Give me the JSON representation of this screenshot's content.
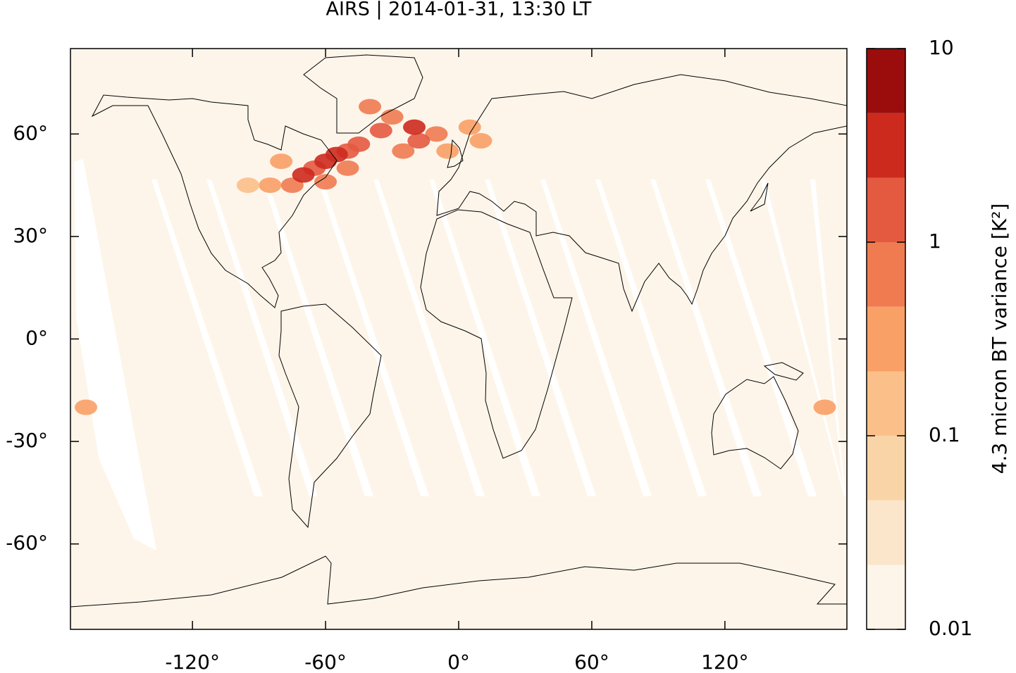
{
  "chart_data": {
    "type": "contour-map",
    "title": "AIRS | 2014-01-31, 13:30 LT",
    "colorbar_label": "4.3 micron BT variance [K²]",
    "xlim": [
      -175,
      175
    ],
    "ylim": [
      -85,
      85
    ],
    "xticks": [
      {
        "value": -120,
        "label": "-120°"
      },
      {
        "value": -60,
        "label": "-60°"
      },
      {
        "value": 0,
        "label": "0°"
      },
      {
        "value": 60,
        "label": "60°"
      },
      {
        "value": 120,
        "label": "120°"
      }
    ],
    "yticks": [
      {
        "value": -60,
        "label": "-60°"
      },
      {
        "value": -30,
        "label": "-30°"
      },
      {
        "value": 0,
        "label": "0°"
      },
      {
        "value": 30,
        "label": "30°"
      },
      {
        "value": 60,
        "label": "60°"
      }
    ],
    "background_color": "#fef5ea",
    "colorbar": {
      "log": true,
      "lim": [
        0.01,
        10
      ],
      "ticks": [
        0.01,
        0.1,
        1,
        10
      ],
      "levels": [
        0.01,
        0.0215,
        0.0464,
        0.1,
        0.215,
        0.464,
        1,
        2.15,
        4.64,
        10
      ],
      "colors": [
        "#fef5ea",
        "#fbe6cb",
        "#f9d4a6",
        "#fbc08a",
        "#f9a066",
        "#f07b51",
        "#e45a40",
        "#cd2a1e",
        "#9b0d0d"
      ]
    },
    "x": [
      -85,
      -95,
      10,
      5,
      -168,
      165,
      -5,
      -80,
      -40,
      -10,
      -25,
      -75,
      -50,
      -30,
      -45,
      -18,
      -60,
      -35,
      -50,
      -65,
      -55,
      -20,
      -60,
      -70
    ],
    "y": [
      45,
      45,
      58,
      62,
      -20,
      -20,
      55,
      52,
      68,
      60,
      55,
      45,
      50,
      65,
      57,
      58,
      46,
      61,
      55,
      50,
      54,
      62,
      52,
      48
    ],
    "values": [
      0.3,
      0.2,
      0.25,
      0.3,
      0.4,
      0.3,
      0.4,
      0.4,
      0.5,
      0.5,
      0.6,
      0.6,
      0.6,
      0.6,
      1,
      1.5,
      0.8,
      1,
      1.2,
      2,
      2.5,
      2.5,
      3,
      3.5
    ]
  }
}
